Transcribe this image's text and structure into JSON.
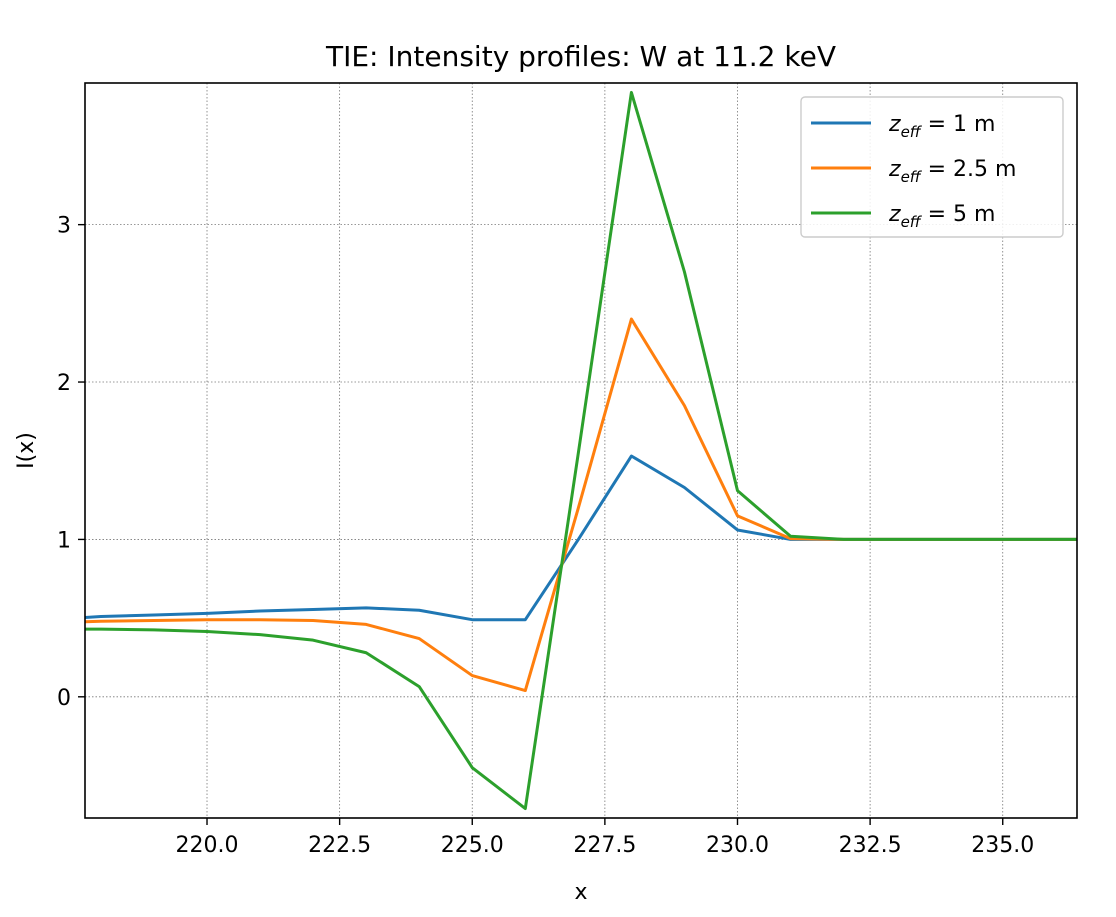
{
  "chart_data": {
    "type": "line",
    "title": "TIE: Intensity profiles: W at 11.2 keV",
    "xlabel": "x",
    "ylabel": "I(x)",
    "xlim": [
      217.7,
      236.4
    ],
    "ylim": [
      -0.77,
      3.9
    ],
    "grid": true,
    "legend_position": "top-right",
    "x_ticks": [
      220.0,
      222.5,
      225.0,
      227.5,
      230.0,
      232.5,
      235.0
    ],
    "x_tick_labels": [
      "220.0",
      "222.5",
      "225.0",
      "227.5",
      "230.0",
      "232.5",
      "235.0"
    ],
    "y_ticks": [
      0,
      1,
      2,
      3
    ],
    "y_tick_labels": [
      "0",
      "1",
      "2",
      "3"
    ],
    "x": [
      217,
      218,
      219,
      220,
      221,
      222,
      223,
      224,
      225,
      226,
      227,
      228,
      229,
      230,
      231,
      232,
      233,
      234,
      235,
      236,
      237
    ],
    "series": [
      {
        "legend_symbol": "z",
        "legend_subscript": "eff",
        "legend_rest": " = 1 m",
        "color": "#1f77b4",
        "values": [
          0.49,
          0.51,
          0.52,
          0.53,
          0.545,
          0.555,
          0.565,
          0.55,
          0.49,
          0.49,
          1.0,
          1.53,
          1.33,
          1.06,
          1.0,
          1.0,
          1.0,
          1.0,
          1.0,
          1.0,
          1.0
        ]
      },
      {
        "legend_symbol": "z",
        "legend_subscript": "eff",
        "legend_rest": " = 2.5 m",
        "color": "#ff7f0e",
        "values": [
          0.47,
          0.48,
          0.485,
          0.49,
          0.49,
          0.485,
          0.46,
          0.37,
          0.135,
          0.04,
          1.2,
          2.4,
          1.85,
          1.15,
          1.005,
          1.0,
          1.0,
          1.0,
          1.0,
          1.0,
          1.0
        ]
      },
      {
        "legend_symbol": "z",
        "legend_subscript": "eff",
        "legend_rest": " = 5 m",
        "color": "#2ca02c",
        "values": [
          0.43,
          0.43,
          0.425,
          0.415,
          0.395,
          0.36,
          0.28,
          0.065,
          -0.45,
          -0.71,
          1.55,
          3.84,
          2.7,
          1.31,
          1.02,
          1.0,
          1.0,
          1.0,
          1.0,
          1.0,
          1.0
        ]
      }
    ]
  }
}
